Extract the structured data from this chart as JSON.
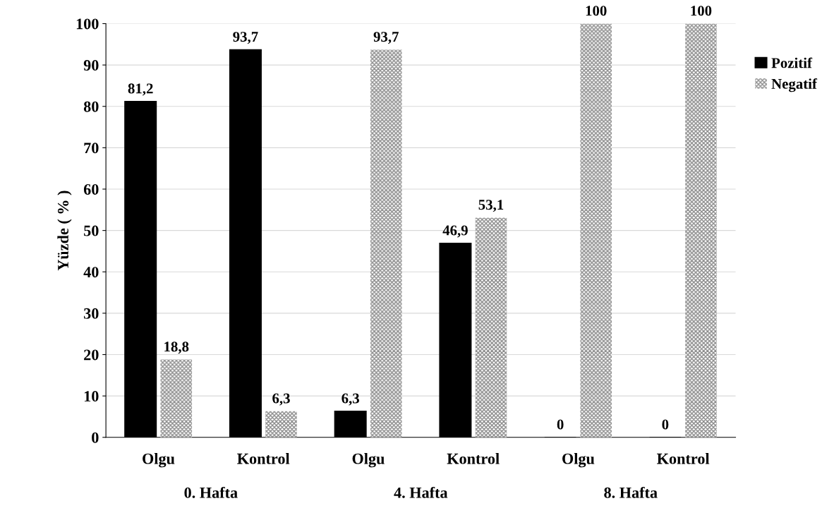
{
  "chart_data": {
    "type": "bar",
    "ylabel": "Yüzde ( % )",
    "categories": [
      "Olgu",
      "Kontrol",
      "Olgu",
      "Kontrol",
      "Olgu",
      "Kontrol"
    ],
    "series": [
      {
        "name": "Pozitif",
        "color": "#000000",
        "values": [
          81.2,
          93.7,
          6.3,
          46.9,
          0,
          0
        ],
        "value_labels": [
          "81,2",
          "93,7",
          "6,3",
          "46,9",
          "0",
          "0"
        ]
      },
      {
        "name": "Negatif",
        "color": "#8c8c8c",
        "values": [
          18.8,
          6.3,
          93.7,
          53.1,
          100,
          100
        ],
        "value_labels": [
          "18,8",
          "6,3",
          "93,7",
          "53,1",
          "100",
          "100"
        ]
      }
    ],
    "annotations": [
      "0. Hafta",
      "4. Hafta",
      "8. Hafta"
    ],
    "ylim": [
      0,
      100
    ],
    "yticks": [
      0,
      10,
      20,
      30,
      40,
      50,
      60,
      70,
      80,
      90,
      100
    ],
    "grid": "y",
    "legend": "right"
  }
}
